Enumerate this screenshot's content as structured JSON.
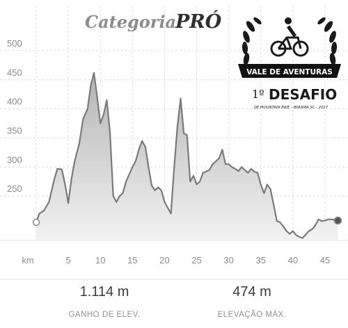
{
  "header": {
    "title_category": "Categoria",
    "title_level": "PRÓ"
  },
  "logo": {
    "banner": "VALE DE AVENTURAS",
    "edition": "1º",
    "event": "DESAFIO",
    "subtitle": "DE MOUNTAIN BIKE - IBIRAMA SC - 2017"
  },
  "chart_data": {
    "type": "area",
    "xlabel": "km",
    "ylabel": "",
    "xlim": [
      0,
      47.5
    ],
    "ylim": [
      175,
      525
    ],
    "y_ticks": [
      250,
      300,
      350,
      400,
      450,
      500
    ],
    "x_ticks": [
      5,
      10,
      15,
      20,
      25,
      30,
      35,
      40,
      45
    ],
    "grid": true,
    "series": [
      {
        "name": "",
        "x": [
          0,
          0.5,
          1.2,
          2,
          2.8,
          3.3,
          4,
          4.5,
          5,
          5.5,
          6,
          6.7,
          7.3,
          8,
          8.5,
          9,
          9.5,
          10,
          10.5,
          11,
          11.5,
          12,
          12.5,
          13,
          13.5,
          14,
          15,
          15.5,
          16,
          16.5,
          17,
          17.5,
          18,
          18.5,
          19,
          19.5,
          20,
          20.5,
          21,
          21.5,
          22,
          22.5,
          23,
          23.5,
          24,
          24.5,
          25,
          25.5,
          26,
          27,
          27.5,
          28,
          28.5,
          29,
          29.5,
          30,
          30.5,
          31,
          31.5,
          32,
          32.5,
          33,
          33.5,
          34,
          34.5,
          35,
          35.5,
          36,
          36.5,
          37,
          37.5,
          38,
          38.5,
          39,
          39.5,
          40,
          40.5,
          41,
          41.5,
          42,
          42.5,
          43,
          43.5,
          44,
          44.5,
          45,
          45.5,
          46,
          46.5,
          47
        ],
        "y": [
          205,
          220,
          225,
          240,
          278,
          297,
          296,
          270,
          238,
          280,
          310,
          340,
          382,
          400,
          440,
          462,
          420,
          375,
          390,
          415,
          360,
          250,
          240,
          250,
          255,
          275,
          300,
          310,
          330,
          345,
          335,
          300,
          268,
          260,
          265,
          260,
          240,
          230,
          220,
          300,
          370,
          418,
          358,
          355,
          275,
          285,
          270,
          275,
          290,
          295,
          305,
          310,
          315,
          330,
          305,
          305,
          300,
          297,
          293,
          300,
          295,
          290,
          297,
          292,
          290,
          270,
          255,
          270,
          262,
          235,
          207,
          205,
          198,
          190,
          185,
          190,
          183,
          180,
          178,
          184,
          190,
          193,
          200,
          210,
          207,
          208,
          210,
          210,
          209,
          208
        ]
      }
    ]
  },
  "stats": {
    "gain_value": "1.114 m",
    "gain_label": "GANHO DE ELEV.",
    "max_value": "474 m",
    "max_label": "ELEVAÇÃO MÁX."
  }
}
